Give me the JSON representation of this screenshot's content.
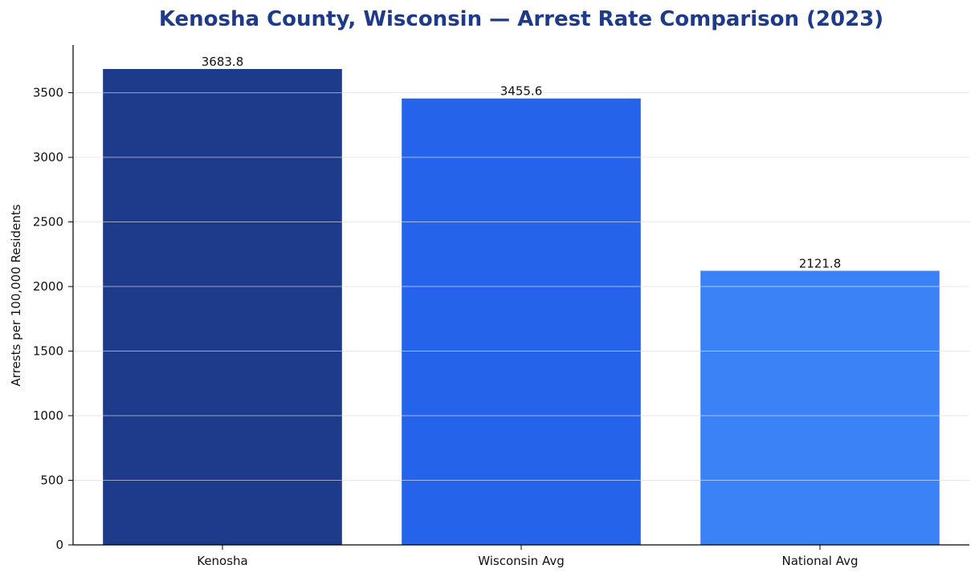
{
  "colors": {
    "title": "#1e3a8a",
    "grid": "#e5e7eb",
    "bar_grid_overlay": "#ffffff",
    "axis": "#000000"
  },
  "chart_data": {
    "type": "bar",
    "title": "Kenosha County, Wisconsin — Arrest Rate Comparison (2023)",
    "xlabel": "",
    "ylabel": "Arrests per 100,000 Residents",
    "categories": [
      "Kenosha",
      "Wisconsin Avg",
      "National Avg"
    ],
    "values": [
      3683.8,
      3455.6,
      2121.8
    ],
    "value_labels": [
      "3683.8",
      "3455.6",
      "2121.8"
    ],
    "bar_colors": [
      "#1e3a8a",
      "#2563eb",
      "#3b82f6"
    ],
    "ylim": [
      0,
      3870
    ],
    "yticks": [
      0,
      500,
      1000,
      1500,
      2000,
      2500,
      3000,
      3500
    ],
    "ytick_labels": [
      "0",
      "500",
      "1000",
      "1500",
      "2000",
      "2500",
      "3000",
      "3500"
    ],
    "grid": true,
    "legend": "none"
  }
}
